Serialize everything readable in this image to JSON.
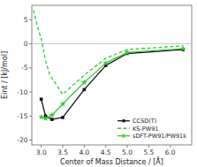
{
  "chart_data": {
    "type": "line",
    "xlabel": "Center of Mass Distance / [Å]",
    "ylabel": "Eint / [kJ/mol]",
    "xlim": [
      2.78,
      6.5
    ],
    "ylim": [
      -21,
      8
    ],
    "xticks": [
      {
        "value": 3.0,
        "label": "3.0"
      },
      3.5,
      {
        "value": 4.0,
        "label": "4.0"
      },
      4.5,
      {
        "value": 5.0,
        "label": "5.0"
      },
      5.5,
      {
        "value": 6.0,
        "label": "6.0"
      }
    ],
    "yticks": [
      -20,
      -15,
      -10,
      -5,
      0,
      5
    ],
    "legend": "lower right",
    "series": [
      {
        "name": "CCSD(T)",
        "color": "#111111",
        "marker": "square",
        "line_style": "solid",
        "x": [
          3.0,
          3.1,
          3.25,
          3.5,
          4.0,
          4.5,
          5.0,
          6.3
        ],
        "values": [
          -11.5,
          -15.0,
          -15.7,
          -15.3,
          -9.5,
          -4.5,
          -2.0,
          -1.2
        ]
      },
      {
        "name": "KS-PW91",
        "color": "#33cc33",
        "marker": "none",
        "line_style": "dashed",
        "x": [
          2.82,
          2.9,
          3.0,
          3.1,
          3.2,
          3.5,
          4.0,
          4.5,
          5.0,
          6.3
        ],
        "values": [
          7.0,
          4.0,
          1.0,
          -3.5,
          -6.5,
          -10.5,
          -6.5,
          -3.0,
          -1.2,
          -0.4
        ]
      },
      {
        "name": "sDFT-PW91/PW91k",
        "color": "#33cc33",
        "marker": "star",
        "line_style": "solid",
        "x": [
          3.0,
          3.1,
          3.25,
          3.5,
          4.0,
          4.5,
          5.0,
          6.3
        ],
        "values": [
          -15.2,
          -15.5,
          -14.8,
          -12.5,
          -8.0,
          -4.0,
          -1.8,
          -1.0
        ]
      }
    ]
  }
}
